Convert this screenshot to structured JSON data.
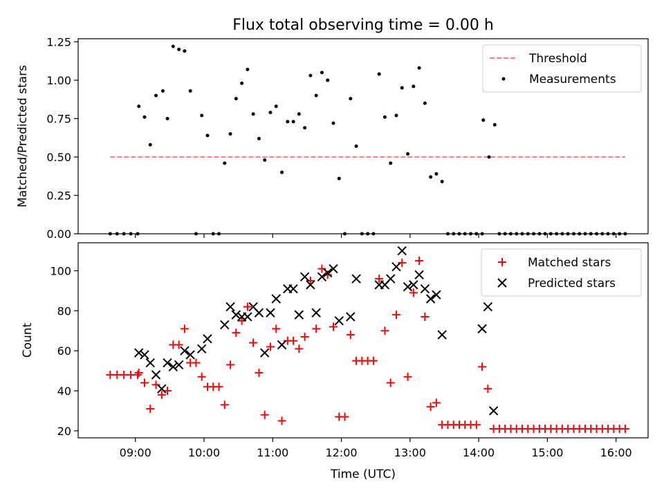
{
  "title": "Flux total observing time = 0.00 h",
  "colors": {
    "threshold": "#ff7f7f",
    "measurements": "#000000",
    "matched": "#ff0000",
    "predicted": "#000000"
  },
  "chart_data": [
    {
      "type": "scatter",
      "title": "Flux total observing time = 0.00 h",
      "ylabel": "Matched/Predicted stars",
      "xlabel": "",
      "ylim": [
        0,
        1.27
      ],
      "yticks": [
        0.0,
        0.25,
        0.5,
        0.75,
        1.0,
        1.25
      ],
      "ytick_labels": [
        "0.00",
        "0.25",
        "0.50",
        "0.75",
        "1.00",
        "1.25"
      ],
      "legend_position": "top-right",
      "threshold": {
        "name": "Threshold",
        "value": 0.5,
        "x_range": [
          "08:38",
          "16:08"
        ],
        "style": "dashed",
        "color": "#ff7f7f"
      },
      "series": [
        {
          "name": "Measurements",
          "marker": "dot",
          "color": "#000000",
          "points": [
            [
              "08:38",
              0
            ],
            [
              "08:44",
              0
            ],
            [
              "08:50",
              0
            ],
            [
              "08:56",
              0
            ],
            [
              "09:02",
              0
            ],
            [
              "09:03",
              0.83
            ],
            [
              "09:08",
              0.76
            ],
            [
              "09:13",
              0.58
            ],
            [
              "09:18",
              0.9
            ],
            [
              "09:24",
              0.93
            ],
            [
              "09:28",
              0.75
            ],
            [
              "09:33",
              1.22
            ],
            [
              "09:38",
              1.2
            ],
            [
              "09:43",
              1.19
            ],
            [
              "09:48",
              0.93
            ],
            [
              "09:53",
              0
            ],
            [
              "09:58",
              0.77
            ],
            [
              "10:03",
              0.64
            ],
            [
              "10:08",
              0
            ],
            [
              "10:13",
              0
            ],
            [
              "10:18",
              0.46
            ],
            [
              "10:23",
              0.65
            ],
            [
              "10:28",
              0.88
            ],
            [
              "10:33",
              0.98
            ],
            [
              "10:38",
              1.07
            ],
            [
              "10:43",
              0.78
            ],
            [
              "10:48",
              0.62
            ],
            [
              "10:53",
              0.48
            ],
            [
              "10:58",
              0.79
            ],
            [
              "11:03",
              0.83
            ],
            [
              "11:08",
              0.4
            ],
            [
              "11:13",
              0.73
            ],
            [
              "11:18",
              0.73
            ],
            [
              "11:23",
              0.78
            ],
            [
              "11:28",
              0.69
            ],
            [
              "11:33",
              1.03
            ],
            [
              "11:38",
              0.9
            ],
            [
              "11:43",
              1.05
            ],
            [
              "11:48",
              1.0
            ],
            [
              "11:53",
              0.72
            ],
            [
              "11:58",
              0.36
            ],
            [
              "12:03",
              0
            ],
            [
              "12:08",
              0.88
            ],
            [
              "12:13",
              0.57
            ],
            [
              "12:18",
              0
            ],
            [
              "12:23",
              0
            ],
            [
              "12:28",
              0
            ],
            [
              "12:33",
              1.04
            ],
            [
              "12:38",
              0.76
            ],
            [
              "12:43",
              0.46
            ],
            [
              "12:48",
              0.77
            ],
            [
              "12:53",
              0.95
            ],
            [
              "12:58",
              0.52
            ],
            [
              "13:03",
              0.96
            ],
            [
              "13:08",
              1.08
            ],
            [
              "13:13",
              0.85
            ],
            [
              "13:18",
              0.37
            ],
            [
              "13:23",
              0.39
            ],
            [
              "13:28",
              0.34
            ],
            [
              "13:33",
              0
            ],
            [
              "13:38",
              0
            ],
            [
              "13:43",
              0
            ],
            [
              "13:48",
              0
            ],
            [
              "13:53",
              0
            ],
            [
              "13:58",
              0
            ],
            [
              "14:03",
              0
            ],
            [
              "14:04",
              0.74
            ],
            [
              "14:09",
              0.5
            ],
            [
              "14:14",
              0.71
            ],
            [
              "14:18",
              0
            ],
            [
              "14:23",
              0
            ],
            [
              "14:28",
              0
            ],
            [
              "14:33",
              0
            ],
            [
              "14:38",
              0
            ],
            [
              "14:43",
              0
            ],
            [
              "14:48",
              0
            ],
            [
              "14:53",
              0
            ],
            [
              "14:58",
              0
            ],
            [
              "15:03",
              0
            ],
            [
              "15:08",
              0
            ],
            [
              "15:13",
              0
            ],
            [
              "15:18",
              0
            ],
            [
              "15:23",
              0
            ],
            [
              "15:28",
              0
            ],
            [
              "15:33",
              0
            ],
            [
              "15:38",
              0
            ],
            [
              "15:43",
              0
            ],
            [
              "15:48",
              0
            ],
            [
              "15:53",
              0
            ],
            [
              "15:58",
              0
            ],
            [
              "16:03",
              0
            ],
            [
              "16:08",
              0
            ]
          ]
        }
      ]
    },
    {
      "type": "scatter",
      "ylabel": "Count",
      "xlabel": "Time (UTC)",
      "ylim": [
        16.5,
        114
      ],
      "yticks": [
        20,
        40,
        60,
        80,
        100
      ],
      "ytick_labels": [
        "20",
        "40",
        "60",
        "80",
        "100"
      ],
      "x_range": [
        "08:10",
        "16:28"
      ],
      "xticks": [
        "09:00",
        "10:00",
        "11:00",
        "12:00",
        "13:00",
        "14:00",
        "15:00",
        "16:00"
      ],
      "legend_position": "top-right",
      "series": [
        {
          "name": "Matched stars",
          "marker": "plus",
          "color": "#ff0000",
          "points": [
            [
              "08:38",
              48
            ],
            [
              "08:44",
              48
            ],
            [
              "08:50",
              48
            ],
            [
              "08:56",
              48
            ],
            [
              "09:02",
              48
            ],
            [
              "09:03",
              49
            ],
            [
              "09:08",
              44
            ],
            [
              "09:13",
              31
            ],
            [
              "09:18",
              43
            ],
            [
              "09:23",
              38
            ],
            [
              "09:28",
              40
            ],
            [
              "09:33",
              63
            ],
            [
              "09:38",
              63
            ],
            [
              "09:43",
              71
            ],
            [
              "09:48",
              54
            ],
            [
              "09:53",
              54
            ],
            [
              "09:58",
              47
            ],
            [
              "10:03",
              42
            ],
            [
              "10:08",
              42
            ],
            [
              "10:13",
              42
            ],
            [
              "10:18",
              33
            ],
            [
              "10:23",
              53
            ],
            [
              "10:28",
              69
            ],
            [
              "10:33",
              75
            ],
            [
              "10:38",
              82
            ],
            [
              "10:43",
              64
            ],
            [
              "10:48",
              49
            ],
            [
              "10:53",
              28
            ],
            [
              "10:58",
              62
            ],
            [
              "11:03",
              71
            ],
            [
              "11:08",
              25
            ],
            [
              "11:13",
              65
            ],
            [
              "11:18",
              65
            ],
            [
              "11:23",
              61
            ],
            [
              "11:28",
              67
            ],
            [
              "11:33",
              95
            ],
            [
              "11:38",
              71
            ],
            [
              "11:43",
              101
            ],
            [
              "11:48",
              98
            ],
            [
              "11:53",
              72
            ],
            [
              "11:58",
              27
            ],
            [
              "12:03",
              27
            ],
            [
              "12:08",
              68
            ],
            [
              "12:13",
              55
            ],
            [
              "12:18",
              55
            ],
            [
              "12:23",
              55
            ],
            [
              "12:28",
              55
            ],
            [
              "12:33",
              96
            ],
            [
              "12:38",
              70
            ],
            [
              "12:43",
              44
            ],
            [
              "12:48",
              78
            ],
            [
              "12:53",
              104
            ],
            [
              "12:58",
              47
            ],
            [
              "13:03",
              89
            ],
            [
              "13:08",
              105
            ],
            [
              "13:13",
              77
            ],
            [
              "13:18",
              32
            ],
            [
              "13:23",
              34
            ],
            [
              "13:28",
              23
            ],
            [
              "13:33",
              23
            ],
            [
              "13:38",
              23
            ],
            [
              "13:43",
              23
            ],
            [
              "13:48",
              23
            ],
            [
              "13:53",
              23
            ],
            [
              "13:58",
              23
            ],
            [
              "14:03",
              52
            ],
            [
              "14:08",
              41
            ],
            [
              "14:13",
              21
            ],
            [
              "14:18",
              21
            ],
            [
              "14:23",
              21
            ],
            [
              "14:28",
              21
            ],
            [
              "14:33",
              21
            ],
            [
              "14:38",
              21
            ],
            [
              "14:43",
              21
            ],
            [
              "14:48",
              21
            ],
            [
              "14:53",
              21
            ],
            [
              "14:58",
              21
            ],
            [
              "15:03",
              21
            ],
            [
              "15:08",
              21
            ],
            [
              "15:13",
              21
            ],
            [
              "15:18",
              21
            ],
            [
              "15:23",
              21
            ],
            [
              "15:28",
              21
            ],
            [
              "15:33",
              21
            ],
            [
              "15:38",
              21
            ],
            [
              "15:43",
              21
            ],
            [
              "15:48",
              21
            ],
            [
              "15:53",
              21
            ],
            [
              "15:58",
              21
            ],
            [
              "16:03",
              21
            ],
            [
              "16:08",
              21
            ]
          ]
        },
        {
          "name": "Predicted stars",
          "marker": "x",
          "color": "#000000",
          "points": [
            [
              "09:03",
              59
            ],
            [
              "09:08",
              58
            ],
            [
              "09:13",
              54
            ],
            [
              "09:18",
              48
            ],
            [
              "09:23",
              41
            ],
            [
              "09:28",
              54
            ],
            [
              "09:33",
              52
            ],
            [
              "09:38",
              53
            ],
            [
              "09:43",
              60
            ],
            [
              "09:48",
              58
            ],
            [
              "09:58",
              61
            ],
            [
              "10:03",
              66
            ],
            [
              "10:18",
              73
            ],
            [
              "10:23",
              82
            ],
            [
              "10:28",
              78
            ],
            [
              "10:33",
              77
            ],
            [
              "10:38",
              77
            ],
            [
              "10:43",
              82
            ],
            [
              "10:48",
              79
            ],
            [
              "10:53",
              59
            ],
            [
              "10:58",
              79
            ],
            [
              "11:03",
              86
            ],
            [
              "11:08",
              63
            ],
            [
              "11:13",
              91
            ],
            [
              "11:18",
              91
            ],
            [
              "11:23",
              78
            ],
            [
              "11:28",
              97
            ],
            [
              "11:33",
              93
            ],
            [
              "11:38",
              79
            ],
            [
              "11:43",
              97
            ],
            [
              "11:48",
              99
            ],
            [
              "11:53",
              101
            ],
            [
              "11:58",
              75
            ],
            [
              "12:08",
              77
            ],
            [
              "12:13",
              96
            ],
            [
              "12:33",
              93
            ],
            [
              "12:38",
              93
            ],
            [
              "12:43",
              96
            ],
            [
              "12:48",
              102
            ],
            [
              "12:53",
              110
            ],
            [
              "12:58",
              92
            ],
            [
              "13:03",
              93
            ],
            [
              "13:08",
              98
            ],
            [
              "13:13",
              91
            ],
            [
              "13:18",
              86
            ],
            [
              "13:23",
              88
            ],
            [
              "13:28",
              68
            ],
            [
              "14:03",
              71
            ],
            [
              "14:08",
              82
            ],
            [
              "14:13",
              30
            ]
          ]
        }
      ]
    }
  ]
}
